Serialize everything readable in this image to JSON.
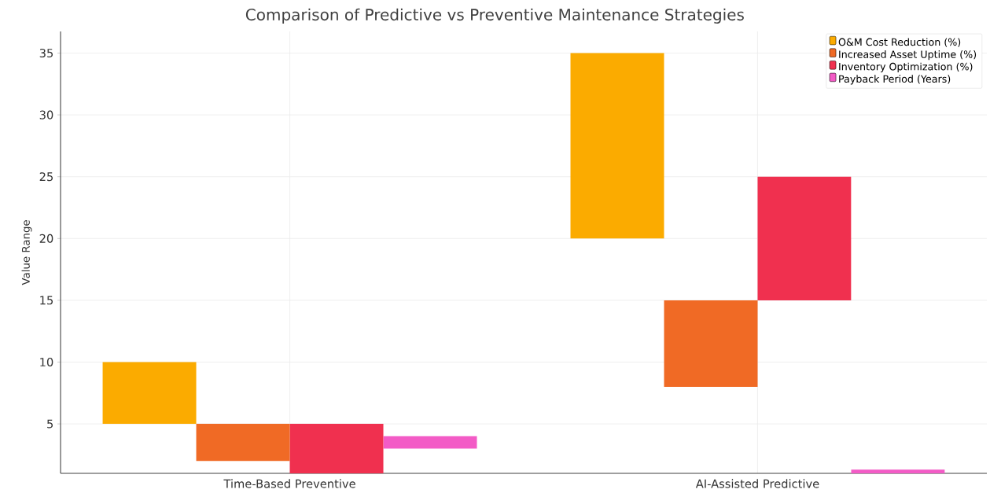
{
  "chart_data": {
    "type": "bar",
    "title": "Comparison of Predictive vs Preventive Maintenance Strategies",
    "ylabel": "Value Range",
    "categories": [
      "Time-Based Preventive",
      "AI-Assisted Predictive"
    ],
    "series": [
      {
        "name": "O&M Cost Reduction (%)",
        "color": "#fbab00",
        "base": [
          5,
          20
        ],
        "values": [
          5,
          15
        ]
      },
      {
        "name": "Increased Asset Uptime (%)",
        "color": "#f06a25",
        "base": [
          2,
          8
        ],
        "values": [
          3,
          7
        ]
      },
      {
        "name": "Inventory Optimization (%)",
        "color": "#f0304f",
        "base": [
          1,
          15
        ],
        "values": [
          4,
          10
        ]
      },
      {
        "name": "Payback Period (Years)",
        "color": "#f35bc6",
        "base": [
          3,
          1
        ],
        "values": [
          1,
          0.3
        ]
      }
    ],
    "ylim": [
      1,
      36.75
    ],
    "yticks": [
      5,
      10,
      15,
      20,
      25,
      30,
      35
    ],
    "grid": true,
    "legend": "top right"
  }
}
